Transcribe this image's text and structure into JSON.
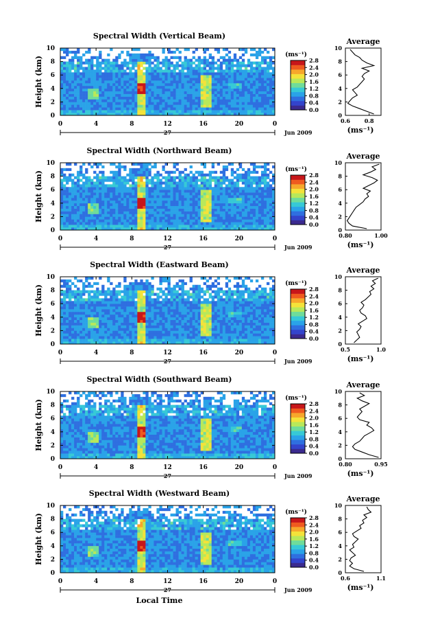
{
  "figure": {
    "xlabel": "Local Time",
    "colors": [
      "#3b2a8f",
      "#3344cc",
      "#2f6fe0",
      "#2aa3e8",
      "#37c9d6",
      "#6fdc9a",
      "#b8e85a",
      "#f4e23a",
      "#f7a72b",
      "#ef5a1f",
      "#c7161a"
    ]
  },
  "chart_data": [
    {
      "type": "heatmap",
      "title": "Spectral Width (Vertical Beam)",
      "ylabel": "Height (km)",
      "ylim": [
        0,
        10
      ],
      "yticks": [
        "0",
        "2",
        "4",
        "6",
        "8",
        "10"
      ],
      "xlim": [
        0,
        24
      ],
      "xticks": [
        "0",
        "4",
        "8",
        "12",
        "16",
        "20",
        "0"
      ],
      "date_mid": "27",
      "date_right": "Jun 2009",
      "colorbar": {
        "unit": "(ms⁻¹)",
        "ticks": [
          "0.0",
          "0.4",
          "0.8",
          "1.2",
          "1.6",
          "2.0",
          "2.4",
          "2.8"
        ],
        "range": [
          0,
          2.8
        ]
      },
      "profile": {
        "title": "Average",
        "xlabel": "(ms⁻¹)",
        "xticks": [
          "0.6",
          "0.8"
        ],
        "xlim": [
          0.6,
          0.9
        ],
        "height": [
          0.2,
          0.6,
          1.0,
          1.4,
          1.8,
          2.2,
          2.6,
          3.0,
          3.4,
          3.8,
          4.2,
          4.6,
          5.0,
          5.4,
          5.8,
          6.2,
          6.6,
          7.0,
          7.4,
          7.8,
          8.2,
          8.6,
          9.0,
          9.4,
          9.8
        ],
        "values": [
          0.84,
          0.78,
          0.72,
          0.66,
          0.62,
          0.64,
          0.66,
          0.7,
          0.68,
          0.66,
          0.7,
          0.72,
          0.74,
          0.76,
          0.74,
          0.76,
          0.8,
          0.74,
          0.84,
          0.78,
          0.74,
          0.72,
          0.68,
          0.66,
          0.64
        ]
      }
    },
    {
      "type": "heatmap",
      "title": "Spectral Width (Northward Beam)",
      "ylabel": "Height (km)",
      "ylim": [
        0,
        10
      ],
      "yticks": [
        "0",
        "2",
        "4",
        "6",
        "8",
        "10"
      ],
      "xlim": [
        0,
        24
      ],
      "xticks": [
        "0",
        "4",
        "8",
        "12",
        "16",
        "20",
        "0"
      ],
      "date_mid": "27",
      "date_right": "Jun 2009",
      "colorbar": {
        "unit": "(ms⁻¹)",
        "ticks": [
          "0.0",
          "0.4",
          "0.8",
          "1.2",
          "1.6",
          "2.0",
          "2.4",
          "2.8"
        ],
        "range": [
          0,
          2.8
        ]
      },
      "profile": {
        "title": "Average",
        "xlabel": "(ms⁻¹)",
        "xticks": [
          "0.80",
          "1.00"
        ],
        "xlim": [
          0.8,
          1.0
        ],
        "height": [
          0.2,
          0.6,
          1.0,
          1.4,
          1.8,
          2.2,
          2.6,
          3.0,
          3.4,
          3.8,
          4.2,
          4.6,
          5.0,
          5.4,
          5.8,
          6.2,
          6.6,
          7.0,
          7.4,
          7.8,
          8.2,
          8.6,
          9.0,
          9.4,
          9.8
        ],
        "values": [
          0.92,
          0.84,
          0.82,
          0.81,
          0.82,
          0.83,
          0.84,
          0.85,
          0.86,
          0.88,
          0.9,
          0.91,
          0.93,
          0.92,
          0.94,
          0.9,
          0.93,
          0.96,
          0.98,
          0.95,
          0.9,
          0.94,
          0.97,
          0.95,
          0.99
        ]
      }
    },
    {
      "type": "heatmap",
      "title": "Spectral Width (Eastward Beam)",
      "ylabel": "Height (km)",
      "ylim": [
        0,
        10
      ],
      "yticks": [
        "0",
        "2",
        "4",
        "6",
        "8",
        "10"
      ],
      "xlim": [
        0,
        24
      ],
      "xticks": [
        "0",
        "4",
        "8",
        "12",
        "16",
        "20",
        "0"
      ],
      "date_mid": "27",
      "date_right": "Jun 2009",
      "colorbar": {
        "unit": "(ms⁻¹)",
        "ticks": [
          "0.0",
          "0.4",
          "0.8",
          "1.2",
          "1.6",
          "2.0",
          "2.4",
          "2.8"
        ],
        "range": [
          0,
          2.8
        ]
      },
      "profile": {
        "title": "Average",
        "xlabel": "(ms⁻¹)",
        "xticks": [
          "0.5",
          "1.0"
        ],
        "xlim": [
          0.5,
          1.0
        ],
        "height": [
          0.2,
          0.6,
          1.0,
          1.4,
          1.8,
          2.2,
          2.6,
          3.0,
          3.4,
          3.8,
          4.2,
          4.6,
          5.0,
          5.4,
          5.8,
          6.2,
          6.6,
          7.0,
          7.4,
          7.8,
          8.2,
          8.6,
          9.0,
          9.4,
          9.8
        ],
        "values": [
          0.62,
          0.66,
          0.7,
          0.68,
          0.66,
          0.7,
          0.72,
          0.68,
          0.74,
          0.8,
          0.78,
          0.72,
          0.7,
          0.74,
          0.76,
          0.72,
          0.78,
          0.82,
          0.86,
          0.84,
          0.9,
          0.86,
          0.92,
          0.88,
          0.96
        ]
      }
    },
    {
      "type": "heatmap",
      "title": "Spectral Width (Southward Beam)",
      "ylabel": "Height (km)",
      "ylim": [
        0,
        10
      ],
      "yticks": [
        "0",
        "2",
        "4",
        "6",
        "8",
        "10"
      ],
      "xlim": [
        0,
        24
      ],
      "xticks": [
        "0",
        "4",
        "8",
        "12",
        "16",
        "20",
        "0"
      ],
      "date_mid": "27",
      "date_right": "Jun 2009",
      "colorbar": {
        "unit": "(ms⁻¹)",
        "ticks": [
          "0.0",
          "0.4",
          "0.8",
          "1.2",
          "1.6",
          "2.0",
          "2.4",
          "2.8"
        ],
        "range": [
          0,
          2.8
        ]
      },
      "profile": {
        "title": "Average",
        "xlabel": "(ms⁻¹)",
        "xticks": [
          "0.80",
          "0.95"
        ],
        "xlim": [
          0.8,
          0.95
        ],
        "height": [
          0.2,
          0.6,
          1.0,
          1.4,
          1.8,
          2.2,
          2.6,
          3.0,
          3.4,
          3.8,
          4.2,
          4.6,
          5.0,
          5.4,
          5.8,
          6.2,
          6.6,
          7.0,
          7.4,
          7.8,
          8.2,
          8.6,
          9.0,
          9.4,
          9.8
        ],
        "values": [
          0.94,
          0.9,
          0.87,
          0.84,
          0.83,
          0.84,
          0.86,
          0.87,
          0.88,
          0.9,
          0.92,
          0.91,
          0.89,
          0.9,
          0.86,
          0.85,
          0.86,
          0.87,
          0.86,
          0.88,
          0.9,
          0.87,
          0.85,
          0.88,
          0.86
        ]
      }
    },
    {
      "type": "heatmap",
      "title": "Spectral Width (Westward Beam)",
      "ylabel": "Height (km)",
      "ylim": [
        0,
        10
      ],
      "yticks": [
        "0",
        "2",
        "4",
        "6",
        "8",
        "10"
      ],
      "xlim": [
        0,
        24
      ],
      "xticks": [
        "0",
        "4",
        "8",
        "12",
        "16",
        "20",
        "0"
      ],
      "date_mid": "27",
      "date_right": "Jun 2009",
      "colorbar": {
        "unit": "(ms⁻¹)",
        "ticks": [
          "0.0",
          "0.4",
          "0.8",
          "1.2",
          "1.6",
          "2.0",
          "2.4",
          "2.8"
        ],
        "range": [
          0,
          2.8
        ]
      },
      "profile": {
        "title": "Average",
        "xlabel": "(ms⁻¹)",
        "xticks": [
          "0.6",
          "1.1"
        ],
        "xlim": [
          0.6,
          1.1
        ],
        "height": [
          0.2,
          0.6,
          1.0,
          1.4,
          1.8,
          2.2,
          2.6,
          3.0,
          3.4,
          3.8,
          4.2,
          4.6,
          5.0,
          5.4,
          5.8,
          6.2,
          6.6,
          7.0,
          7.4,
          7.8,
          8.2,
          8.6,
          9.0,
          9.4,
          9.8
        ],
        "values": [
          0.86,
          0.72,
          0.66,
          0.7,
          0.66,
          0.68,
          0.74,
          0.7,
          0.66,
          0.72,
          0.7,
          0.74,
          0.78,
          0.72,
          0.7,
          0.76,
          0.82,
          0.8,
          0.86,
          0.84,
          0.9,
          0.86,
          0.96,
          0.92,
          0.9
        ]
      }
    }
  ]
}
